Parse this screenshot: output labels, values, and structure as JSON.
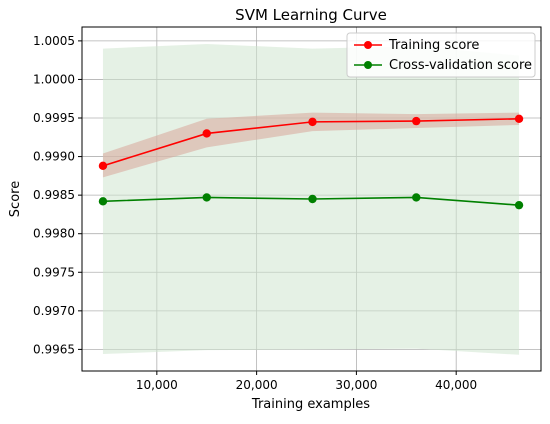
{
  "chart_data": {
    "type": "line",
    "title": "SVM Learning Curve",
    "xlabel": "Training examples",
    "ylabel": "Score",
    "xlim": [
      2500,
      48500
    ],
    "ylim": [
      0.99622,
      1.00068
    ],
    "grid": true,
    "legend_position": "top-right",
    "x": [
      4600,
      15000,
      25600,
      36000,
      46300
    ],
    "xticks": [
      10000,
      20000,
      30000,
      40000
    ],
    "xtick_labels": [
      "10,000",
      "20,000",
      "30,000",
      "40,000"
    ],
    "yticks": [
      0.9965,
      0.997,
      0.9975,
      0.998,
      0.9985,
      0.999,
      0.9995,
      1.0,
      1.0005
    ],
    "ytick_labels": [
      "0.9965",
      "0.9970",
      "0.9975",
      "0.9980",
      "0.9985",
      "0.9990",
      "0.9995",
      "1.0000",
      "1.0005"
    ],
    "series": [
      {
        "name": "Training score",
        "color": "#ff0000",
        "band_color": "#d9a59a",
        "values": [
          0.99888,
          0.9993,
          0.99945,
          0.99946,
          0.99949
        ],
        "lower": [
          0.99873,
          0.99912,
          0.99933,
          0.99937,
          0.99941
        ],
        "upper": [
          0.99904,
          0.99949,
          0.99957,
          0.99955,
          0.99957
        ]
      },
      {
        "name": "Cross-validation score",
        "color": "#008000",
        "band_color": "#cfe6cf",
        "values": [
          0.99842,
          0.99847,
          0.99845,
          0.99847,
          0.99837
        ],
        "lower": [
          0.99644,
          0.99649,
          0.9965,
          0.99651,
          0.99643
        ],
        "upper": [
          1.0004,
          1.00046,
          1.0004,
          1.00043,
          1.00031
        ]
      }
    ]
  }
}
